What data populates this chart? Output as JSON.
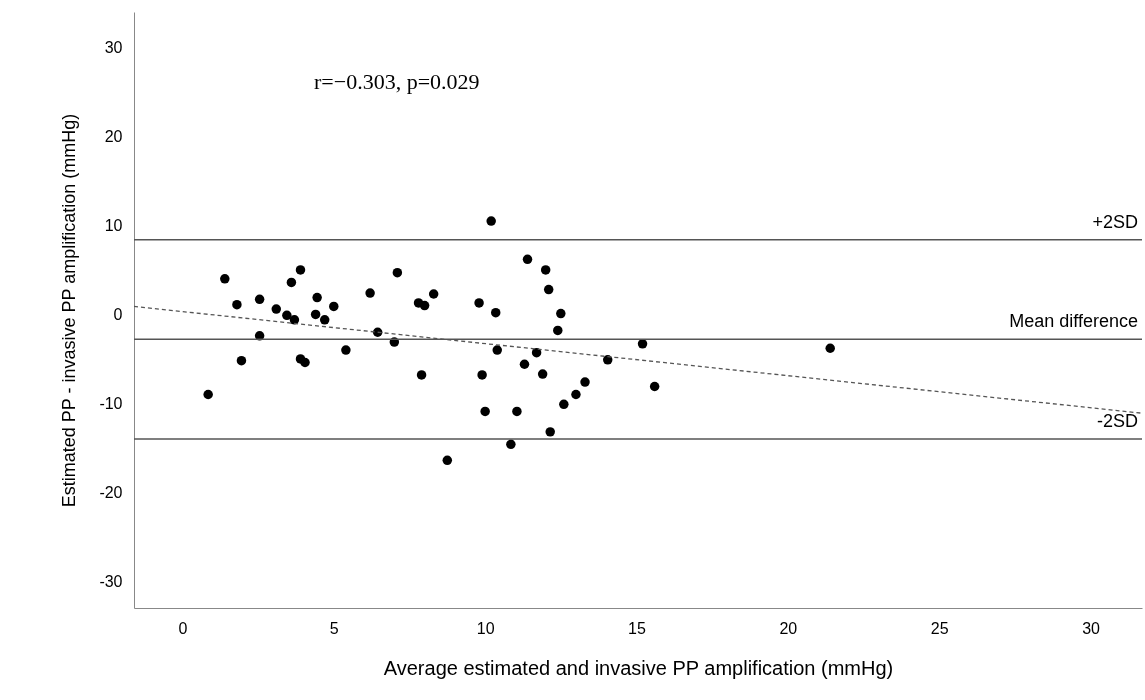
{
  "chart_data": {
    "type": "scatter",
    "xlabel": "Average estimated and invasive PP amplification (mmHg)",
    "ylabel": "Estimated PP - invasive PP amplification (mmHg)",
    "xlim": [
      -1.6,
      31.7
    ],
    "ylim": [
      -33,
      34
    ],
    "xticks": [
      0,
      5,
      10,
      15,
      20,
      25,
      30
    ],
    "yticks": [
      -30,
      -20,
      -10,
      0,
      10,
      20,
      30
    ],
    "grid": false,
    "annotations": [
      "r=−0.303, p=0.029"
    ],
    "ref_lines": [
      {
        "axis": "y",
        "value": 8.4,
        "label": "+2SD",
        "color": "#555555",
        "line_style": "solid"
      },
      {
        "axis": "y",
        "value": -2.8,
        "label": "Mean difference",
        "color": "#555555",
        "line_style": "solid"
      },
      {
        "axis": "y",
        "value": -14.0,
        "label": "-2SD",
        "color": "#555555",
        "line_style": "solid"
      }
    ],
    "series": [
      {
        "marker": "circle",
        "color": "#000000",
        "x": [
          0.85,
          1.4,
          1.8,
          1.95,
          2.55,
          2.55,
          3.1,
          3.45,
          3.6,
          3.7,
          3.9,
          3.9,
          4.05,
          4.4,
          4.45,
          4.7,
          5.0,
          5.4,
          6.2,
          6.45,
          7.0,
          7.1,
          7.8,
          8.0,
          7.9,
          8.3,
          8.75,
          9.8,
          9.9,
          10.0,
          10.2,
          10.35,
          10.4,
          11.4,
          12.0,
          12.1,
          12.5,
          12.4,
          11.3,
          11.7,
          11.9,
          11.05,
          10.85,
          12.15,
          12.6,
          13.0,
          13.3,
          14.05,
          15.2,
          15.6,
          21.4
        ],
        "values": [
          -9.0,
          4.0,
          1.1,
          -5.2,
          1.7,
          -2.4,
          0.6,
          -0.1,
          3.6,
          -0.6,
          5.0,
          -5.0,
          -5.4,
          0.0,
          1.9,
          -0.6,
          0.9,
          -4.0,
          2.4,
          -2.0,
          -3.1,
          4.7,
          1.3,
          1.0,
          -6.8,
          2.3,
          -16.4,
          1.3,
          -6.8,
          -10.9,
          10.5,
          0.2,
          -4.0,
          6.2,
          5.0,
          2.8,
          0.1,
          -1.8,
          -5.6,
          -4.3,
          -6.7,
          -10.9,
          -14.6,
          -13.2,
          -10.1,
          -9.0,
          -7.6,
          -5.1,
          -3.3,
          -8.1,
          -3.8
        ]
      },
      {
        "type": "line",
        "color": "#555555",
        "line_style": "dashed",
        "x": [
          -1.6,
          31.7
        ],
        "values": [
          0.9,
          -11.1
        ]
      }
    ]
  }
}
